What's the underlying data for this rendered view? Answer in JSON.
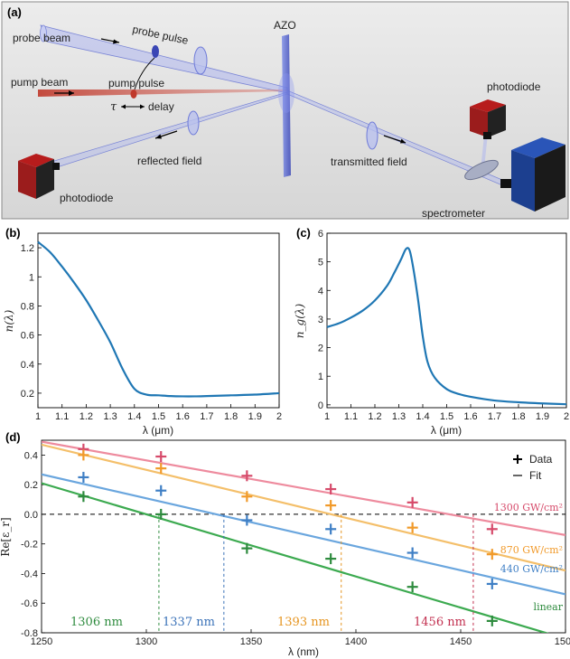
{
  "panel_a": {
    "label": "(a)",
    "labels": {
      "probe_beam": "probe beam",
      "probe_pulse": "probe pulse",
      "azo": "AZO",
      "pump_beam": "pump beam",
      "pump_pulse": "pump pulse",
      "tau": "τ",
      "delay": "delay",
      "photodiode_top": "photodiode",
      "reflected_field": "reflected field",
      "transmitted_field": "transmitted field",
      "photodiode_left": "photodiode",
      "spectrometer": "spectrometer"
    },
    "colors": {
      "background": "#e3e3e3",
      "pump": "#c0392b",
      "probe": "#6f7bd8",
      "detector_red": "#9b1c1c",
      "detector_blue": "#1c3f8f"
    }
  },
  "chart_data": [
    {
      "id": "b",
      "label": "(b)",
      "type": "line",
      "xlabel": "λ (μm)",
      "ylabel": "n(λ)",
      "xlim": [
        1,
        2
      ],
      "ylim": [
        0.1,
        1.3
      ],
      "xticks": [
        1,
        1.1,
        1.2,
        1.3,
        1.4,
        1.5,
        1.6,
        1.7,
        1.8,
        1.9,
        2
      ],
      "xtick_labels": [
        "1",
        "1.1",
        "1.2",
        "1.3",
        "1.4",
        "1.5",
        "1.6",
        "1.7",
        "1.8",
        "1.9",
        "2"
      ],
      "yticks": [
        0.2,
        0.4,
        0.6,
        0.8,
        1,
        1.2
      ],
      "ytick_labels": [
        "0.2",
        "0.4",
        "0.6",
        "0.8",
        "1",
        "1.2"
      ],
      "color": "#1f77b4",
      "x": [
        1.0,
        1.05,
        1.1,
        1.15,
        1.2,
        1.25,
        1.3,
        1.35,
        1.4,
        1.45,
        1.5,
        1.55,
        1.6,
        1.65,
        1.7,
        1.8,
        1.9,
        2.0
      ],
      "y": [
        1.24,
        1.17,
        1.07,
        0.96,
        0.84,
        0.7,
        0.55,
        0.37,
        0.23,
        0.19,
        0.185,
        0.18,
        0.178,
        0.178,
        0.18,
        0.185,
        0.19,
        0.2
      ]
    },
    {
      "id": "c",
      "label": "(c)",
      "type": "line",
      "xlabel": "λ (μm)",
      "ylabel": "n_g(λ)",
      "xlim": [
        1,
        2
      ],
      "ylim": [
        -0.1,
        6
      ],
      "xticks": [
        1,
        1.1,
        1.2,
        1.3,
        1.4,
        1.5,
        1.6,
        1.7,
        1.8,
        1.9,
        2
      ],
      "xtick_labels": [
        "1",
        "1.1",
        "1.2",
        "1.3",
        "1.4",
        "1.5",
        "1.6",
        "1.7",
        "1.8",
        "1.9",
        "2"
      ],
      "yticks": [
        0,
        1,
        2,
        3,
        4,
        5,
        6
      ],
      "ytick_labels": [
        "0",
        "1",
        "2",
        "3",
        "4",
        "5",
        "6"
      ],
      "color": "#1f77b4",
      "x": [
        1.0,
        1.05,
        1.1,
        1.15,
        1.2,
        1.25,
        1.28,
        1.31,
        1.33,
        1.345,
        1.36,
        1.38,
        1.4,
        1.42,
        1.45,
        1.5,
        1.55,
        1.6,
        1.7,
        1.8,
        1.9,
        2.0
      ],
      "y": [
        2.72,
        2.85,
        3.05,
        3.3,
        3.65,
        4.15,
        4.6,
        5.1,
        5.45,
        5.4,
        4.8,
        3.7,
        2.4,
        1.5,
        0.95,
        0.55,
        0.38,
        0.28,
        0.15,
        0.09,
        0.05,
        0.02
      ]
    },
    {
      "id": "d",
      "label": "(d)",
      "type": "scatter",
      "xlabel": "λ (nm)",
      "ylabel": "Re[ε_r]",
      "xlim": [
        1250,
        1500
      ],
      "ylim": [
        -0.8,
        0.5
      ],
      "xticks": [
        1250,
        1300,
        1350,
        1400,
        1450,
        1500
      ],
      "xtick_labels": [
        "1250",
        "1300",
        "1350",
        "1400",
        "1450",
        "1500"
      ],
      "yticks": [
        -0.8,
        -0.6,
        -0.4,
        -0.2,
        0.0,
        0.2,
        0.4
      ],
      "ytick_labels": [
        "-0.8",
        "-0.6",
        "-0.4",
        "-0.2",
        "0.0",
        "0.2",
        "0.4"
      ],
      "legend": {
        "data": "Data",
        "fit": "Fit",
        "position": "top-right"
      },
      "zero_line": true,
      "x": [
        1270,
        1307,
        1348,
        1388,
        1427,
        1465
      ],
      "series": [
        {
          "name": "1300 GW/cm²",
          "color": "#d64a6a",
          "line_color": "#ee8b9e",
          "values": [
            0.44,
            0.39,
            0.26,
            0.17,
            0.08,
            -0.1
          ],
          "fit": [
            [
              1250,
              0.49
            ],
            [
              1500,
              -0.14
            ]
          ],
          "crossing_nm": 1456,
          "crossing_label": "1456 nm",
          "crossing_color": "#c22f4f"
        },
        {
          "name": "870 GW/cm²",
          "color": "#f19a2a",
          "line_color": "#f4bf6a",
          "values": [
            0.4,
            0.31,
            0.12,
            0.06,
            -0.09,
            -0.27
          ],
          "fit": [
            [
              1250,
              0.47
            ],
            [
              1500,
              -0.38
            ]
          ],
          "crossing_nm": 1393,
          "crossing_label": "1393 nm",
          "crossing_color": "#e69520"
        },
        {
          "name": "440 GW/cm²",
          "color": "#3f7fc5",
          "line_color": "#6aa6de",
          "values": [
            0.25,
            0.16,
            -0.04,
            -0.1,
            -0.26,
            -0.47
          ],
          "fit": [
            [
              1250,
              0.27
            ],
            [
              1500,
              -0.54
            ]
          ],
          "crossing_nm": 1337,
          "crossing_label": "1337 nm",
          "crossing_color": "#3a72b8"
        },
        {
          "name": "linear",
          "color": "#2e8b3e",
          "line_color": "#3caa50",
          "values": [
            0.12,
            0.0,
            -0.23,
            -0.3,
            -0.49,
            -0.72
          ],
          "fit": [
            [
              1250,
              0.21
            ],
            [
              1500,
              -0.84
            ]
          ],
          "crossing_nm": 1306,
          "crossing_label": "1306 nm",
          "crossing_color": "#2e8b3e"
        }
      ]
    }
  ]
}
